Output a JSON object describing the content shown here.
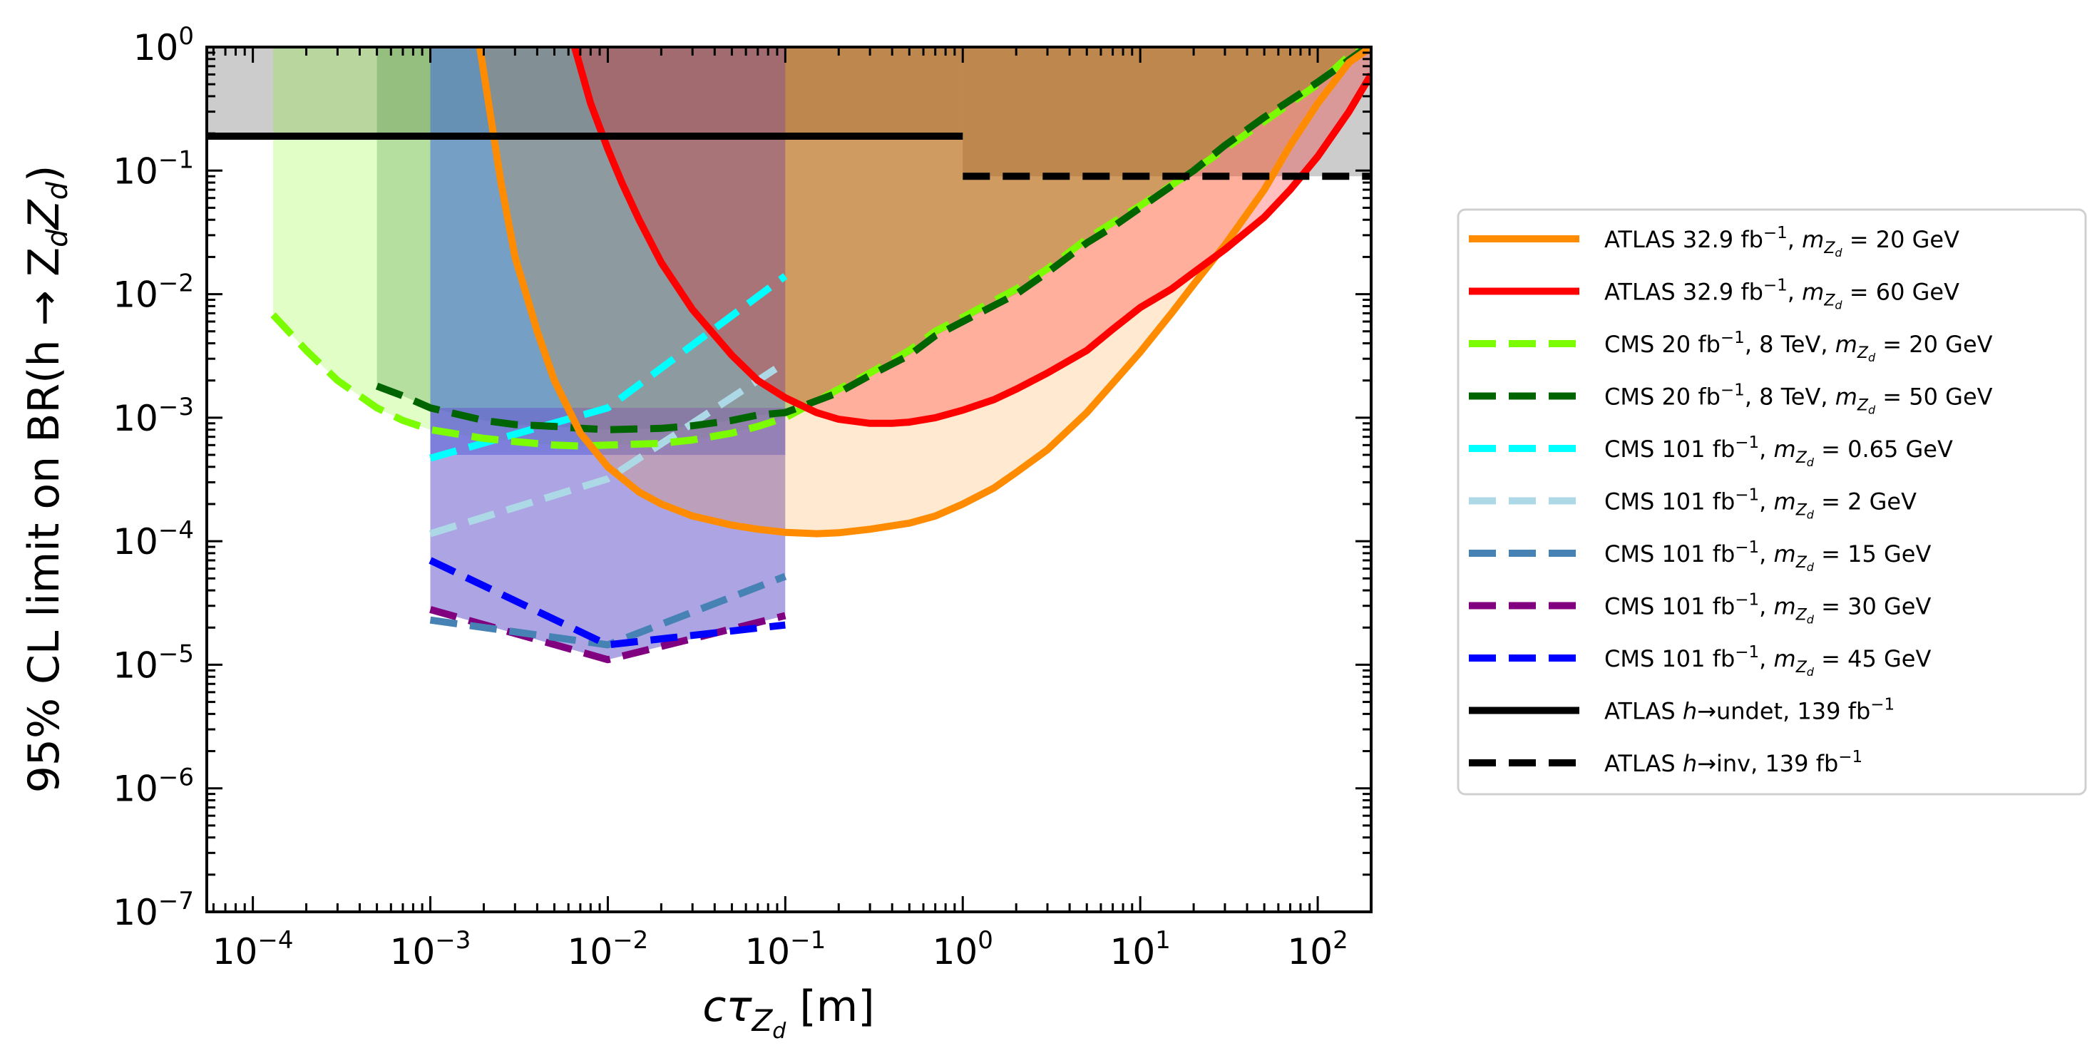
{
  "chart_data": {
    "type": "line",
    "xscale": "log",
    "yscale": "log",
    "xlim": [
      5.5e-05,
      200
    ],
    "ylim": [
      1e-07,
      1
    ],
    "xlabel": {
      "pre": "cτ",
      "sub": "Z",
      "subsub": "d",
      "post": " [m]"
    },
    "ylabel": {
      "pre": "95% CL limit on BR(h → Z",
      "s1": "d",
      "mid": "Z",
      "s2": "d",
      "post": ")"
    },
    "x_ticks": [
      {
        "value": 0.0001,
        "base": "10",
        "exp": "−4"
      },
      {
        "value": 0.001,
        "base": "10",
        "exp": "−3"
      },
      {
        "value": 0.01,
        "base": "10",
        "exp": "−2"
      },
      {
        "value": 0.1,
        "base": "10",
        "exp": "−1"
      },
      {
        "value": 1,
        "base": "10",
        "exp": "0"
      },
      {
        "value": 10,
        "base": "10",
        "exp": "1"
      },
      {
        "value": 100,
        "base": "10",
        "exp": "2"
      }
    ],
    "y_ticks": [
      {
        "value": 1,
        "base": "10",
        "exp": "0"
      },
      {
        "value": 0.1,
        "base": "10",
        "exp": "−1"
      },
      {
        "value": 0.01,
        "base": "10",
        "exp": "−2"
      },
      {
        "value": 0.001,
        "base": "10",
        "exp": "−3"
      },
      {
        "value": 0.0001,
        "base": "10",
        "exp": "−4"
      },
      {
        "value": 1e-05,
        "base": "10",
        "exp": "−5"
      },
      {
        "value": 1e-06,
        "base": "10",
        "exp": "−6"
      },
      {
        "value": 1e-07,
        "base": "10",
        "exp": "−7"
      }
    ],
    "colors": {
      "atlas20": "#ff8c00",
      "atlas60": "#ff0000",
      "cms8_20": "#7cfc00",
      "cms8_50": "#006400",
      "cms101_065": "#00ffff",
      "cms101_2": "#add8e6",
      "cms101_15": "#4682b4",
      "cms101_30": "#800080",
      "cms101_45": "#0000ff",
      "black": "#000000",
      "gray": "#cccccc"
    },
    "bands": [
      {
        "name": "gray-undet",
        "color": "#cccccc",
        "alpha": 1,
        "x": [
          5.5e-05,
          1
        ],
        "y_low": 0.19,
        "y_high": 1
      },
      {
        "name": "gray-inv",
        "color": "#cccccc",
        "alpha": 1,
        "x": [
          1,
          200
        ],
        "y_low": 0.09,
        "y_high": 1
      },
      {
        "name": "cms8-20",
        "color": "#7cfc00",
        "alpha": 0.22,
        "upper": 1,
        "series": "cms8_20"
      },
      {
        "name": "cms8-50",
        "color": "#006400",
        "alpha": 0.2,
        "upper": 1,
        "series": "cms8_50"
      },
      {
        "name": "cms101-065",
        "color": "#4169e1",
        "alpha": 0.55,
        "x": [
          0.001,
          0.1
        ],
        "y_low": 0.0005,
        "y_high": 1
      },
      {
        "name": "cms101-low",
        "color": "#6a5acd",
        "alpha": 0.55,
        "upper": 0.0012,
        "x_clip": [
          0.001,
          0.1
        ],
        "series": "cms101_30"
      },
      {
        "name": "atlas20-band",
        "color": "#ff8c00",
        "alpha": 0.18,
        "upper": 1,
        "series": "atlas20"
      },
      {
        "name": "atlas60-band",
        "color": "#ff0000",
        "alpha": 0.25,
        "upper": 1,
        "series": "atlas60"
      }
    ],
    "series": [
      {
        "id": "atlas20",
        "name": "ATLAS 32.9 fb⁻¹, m_Zd = 20 GeV",
        "color": "#ff8c00",
        "dash": "solid",
        "x": [
          0.0019,
          0.0021,
          0.0025,
          0.003,
          0.004,
          0.005,
          0.007,
          0.01,
          0.015,
          0.02,
          0.03,
          0.05,
          0.07,
          0.1,
          0.15,
          0.2,
          0.3,
          0.5,
          0.7,
          1,
          1.5,
          2,
          3,
          5,
          7,
          10,
          15,
          20,
          30,
          50,
          70,
          100,
          150,
          200
        ],
        "y": [
          1,
          0.4,
          0.08,
          0.02,
          0.005,
          0.002,
          0.00075,
          0.0004,
          0.00025,
          0.0002,
          0.00016,
          0.000135,
          0.000125,
          0.000118,
          0.000115,
          0.000117,
          0.000125,
          0.00014,
          0.00016,
          0.0002,
          0.00027,
          0.00036,
          0.00055,
          0.0011,
          0.0019,
          0.0034,
          0.007,
          0.012,
          0.025,
          0.07,
          0.16,
          0.35,
          0.75,
          1
        ]
      },
      {
        "id": "atlas60",
        "name": "ATLAS 32.9 fb⁻¹, m_Zd = 60 GeV",
        "color": "#ff0000",
        "dash": "solid",
        "x": [
          0.0065,
          0.008,
          0.01,
          0.012,
          0.015,
          0.02,
          0.03,
          0.05,
          0.07,
          0.1,
          0.15,
          0.2,
          0.3,
          0.4,
          0.5,
          0.7,
          1,
          1.5,
          2,
          3,
          5,
          7,
          10,
          15,
          20,
          30,
          50,
          70,
          100,
          150,
          200
        ],
        "y": [
          1,
          0.35,
          0.15,
          0.08,
          0.04,
          0.018,
          0.0075,
          0.0032,
          0.002,
          0.00145,
          0.0011,
          0.00097,
          0.0009,
          0.0009,
          0.00092,
          0.001,
          0.00115,
          0.0014,
          0.0017,
          0.0023,
          0.0035,
          0.0052,
          0.0078,
          0.011,
          0.015,
          0.023,
          0.042,
          0.07,
          0.13,
          0.3,
          0.6
        ]
      },
      {
        "id": "cms8_20",
        "name": "CMS 20 fb⁻¹, 8 TeV, m_Zd = 20 GeV",
        "color": "#7cfc00",
        "dash": "dashed",
        "x": [
          0.00013,
          0.0002,
          0.0003,
          0.0005,
          0.0007,
          0.001,
          0.002,
          0.003,
          0.005,
          0.007,
          0.01,
          0.02,
          0.03,
          0.05,
          0.07,
          0.1,
          0.2,
          0.3,
          0.5,
          0.7,
          1,
          2,
          3,
          5,
          7,
          10,
          20,
          30,
          50,
          100,
          170
        ],
        "y": [
          0.0068,
          0.0035,
          0.002,
          0.0012,
          0.00095,
          0.0008,
          0.00068,
          0.00064,
          0.0006,
          0.00059,
          0.0006,
          0.00062,
          0.00066,
          0.00075,
          0.00085,
          0.001,
          0.0017,
          0.0023,
          0.0035,
          0.005,
          0.0065,
          0.011,
          0.016,
          0.028,
          0.038,
          0.052,
          0.1,
          0.15,
          0.25,
          0.5,
          1
        ]
      },
      {
        "id": "cms8_50",
        "name": "CMS 20 fb⁻¹, 8 TeV, m_Zd = 50 GeV",
        "color": "#006400",
        "dash": "dashed",
        "x": [
          0.0005,
          0.0007,
          0.001,
          0.002,
          0.003,
          0.005,
          0.007,
          0.01,
          0.02,
          0.03,
          0.05,
          0.07,
          0.1,
          0.2,
          0.3,
          0.5,
          0.7,
          1,
          2,
          3,
          5,
          7,
          10,
          20,
          30,
          50,
          100,
          190
        ],
        "y": [
          0.0018,
          0.0015,
          0.0012,
          0.00095,
          0.00088,
          0.00085,
          0.00082,
          0.0008,
          0.00082,
          0.00086,
          0.00095,
          0.00105,
          0.0011,
          0.0016,
          0.0022,
          0.0032,
          0.0046,
          0.006,
          0.01,
          0.015,
          0.026,
          0.035,
          0.05,
          0.1,
          0.16,
          0.27,
          0.52,
          1
        ]
      },
      {
        "id": "cms101_065",
        "name": "CMS 101 fb⁻¹, m_Zd = 0.65 GeV",
        "color": "#00ffff",
        "dash": "dashed",
        "x": [
          0.001,
          0.01,
          0.1
        ],
        "y": [
          0.00047,
          0.0012,
          0.014
        ]
      },
      {
        "id": "cms101_2",
        "name": "CMS 101 fb⁻¹, m_Zd = 2 GeV",
        "color": "#add8e6",
        "dash": "dashed",
        "x": [
          0.001,
          0.01,
          0.1
        ],
        "y": [
          0.000115,
          0.00032,
          0.0028
        ]
      },
      {
        "id": "cms101_15",
        "name": "CMS 101 fb⁻¹, m_Zd = 15 GeV",
        "color": "#4682b4",
        "dash": "dashed",
        "x": [
          0.001,
          0.01,
          0.1
        ],
        "y": [
          2.3e-05,
          1.45e-05,
          5.2e-05
        ]
      },
      {
        "id": "cms101_30",
        "name": "CMS 101 fb⁻¹, m_Zd = 30 GeV",
        "color": "#800080",
        "dash": "dashed",
        "x": [
          0.001,
          0.01,
          0.1
        ],
        "y": [
          2.8e-05,
          1.1e-05,
          2.5e-05
        ]
      },
      {
        "id": "cms101_45",
        "name": "CMS 101 fb⁻¹, m_Zd = 45 GeV",
        "color": "#0000ff",
        "dash": "dashed",
        "x": [
          0.001,
          0.01,
          0.1
        ],
        "y": [
          7e-05,
          1.45e-05,
          2.1e-05
        ]
      },
      {
        "id": "undet",
        "name": "ATLAS h → undet, 139 fb⁻¹",
        "color": "#000000",
        "dash": "solid",
        "x": [
          5.5e-05,
          1
        ],
        "y": [
          0.19,
          0.19
        ]
      },
      {
        "id": "inv",
        "name": "ATLAS h → inv, 139 fb⁻¹",
        "color": "#000000",
        "dash": "dashed",
        "x": [
          1,
          200
        ],
        "y": [
          0.09,
          0.09
        ]
      }
    ],
    "legend": {
      "placement": "right",
      "entries": [
        {
          "series": "atlas20",
          "dash": "solid",
          "color": "#ff8c00",
          "pre": "ATLAS 32.9 fb",
          "sup": "−1",
          "mid": ", m",
          "sub": "Z",
          "subsub": "d",
          "post": " = 20 GeV"
        },
        {
          "series": "atlas60",
          "dash": "solid",
          "color": "#ff0000",
          "pre": "ATLAS 32.9 fb",
          "sup": "−1",
          "mid": ", m",
          "sub": "Z",
          "subsub": "d",
          "post": " = 60 GeV"
        },
        {
          "series": "cms8_20",
          "dash": "dashed",
          "color": "#7cfc00",
          "pre": "CMS 20 fb",
          "sup": "−1",
          "mid": ", 8 TeV, m",
          "sub": "Z",
          "subsub": "d",
          "post": " = 20 GeV"
        },
        {
          "series": "cms8_50",
          "dash": "dashed",
          "color": "#006400",
          "pre": "CMS 20 fb",
          "sup": "−1",
          "mid": ", 8 TeV, m",
          "sub": "Z",
          "subsub": "d",
          "post": " = 50 GeV"
        },
        {
          "series": "cms101_065",
          "dash": "dashed",
          "color": "#00ffff",
          "pre": "CMS 101 fb",
          "sup": "−1",
          "mid": ", m",
          "sub": "Z",
          "subsub": "d",
          "post": " = 0.65 GeV"
        },
        {
          "series": "cms101_2",
          "dash": "dashed",
          "color": "#add8e6",
          "pre": "CMS 101 fb",
          "sup": "−1",
          "mid": ", m",
          "sub": "Z",
          "subsub": "d",
          "post": " = 2 GeV"
        },
        {
          "series": "cms101_15",
          "dash": "dashed",
          "color": "#4682b4",
          "pre": "CMS 101 fb",
          "sup": "−1",
          "mid": ", m",
          "sub": "Z",
          "subsub": "d",
          "post": " = 15 GeV"
        },
        {
          "series": "cms101_30",
          "dash": "dashed",
          "color": "#800080",
          "pre": "CMS 101 fb",
          "sup": "−1",
          "mid": ", m",
          "sub": "Z",
          "subsub": "d",
          "post": " = 30 GeV"
        },
        {
          "series": "cms101_45",
          "dash": "dashed",
          "color": "#0000ff",
          "pre": "CMS 101 fb",
          "sup": "−1",
          "mid": ", m",
          "sub": "Z",
          "subsub": "d",
          "post": " = 45 GeV"
        },
        {
          "series": "undet",
          "dash": "solid",
          "color": "#000000",
          "pre": "ATLAS ",
          "it": "h",
          "mid2": "→undet, 139 fb",
          "sup2": "−1"
        },
        {
          "series": "inv",
          "dash": "dashed",
          "color": "#000000",
          "pre": "ATLAS ",
          "it": "h",
          "mid2": "→inv, 139 fb",
          "sup2": "−1"
        }
      ]
    }
  }
}
